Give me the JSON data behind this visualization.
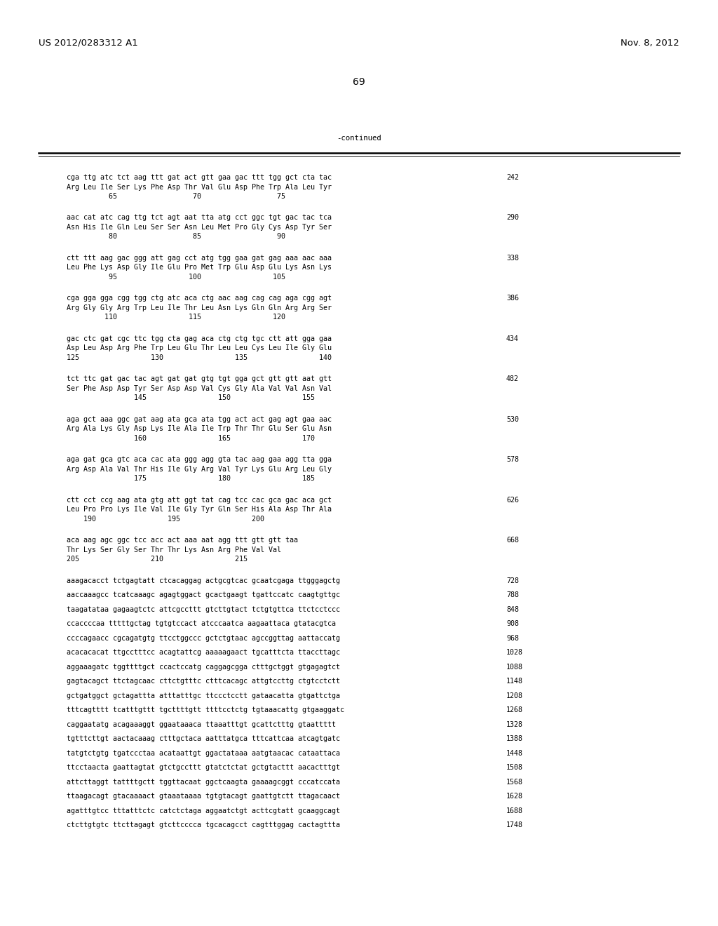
{
  "header_left": "US 2012/0283312 A1",
  "header_right": "Nov. 8, 2012",
  "page_number": "69",
  "continued_label": "-continued",
  "background_color": "#ffffff",
  "text_color": "#000000",
  "sequence_blocks": [
    {
      "dna": "cga ttg atc tct aag ttt gat act gtt gaa gac ttt tgg gct cta tac",
      "aa": "Arg Leu Ile Ser Lys Phe Asp Thr Val Glu Asp Phe Trp Ala Leu Tyr",
      "nums": "          65                  70                  75",
      "num_right": "242"
    },
    {
      "dna": "aac cat atc cag ttg tct agt aat tta atg cct ggc tgt gac tac tca",
      "aa": "Asn His Ile Gln Leu Ser Ser Asn Leu Met Pro Gly Cys Asp Tyr Ser",
      "nums": "          80                  85                  90",
      "num_right": "290"
    },
    {
      "dna": "ctt ttt aag gac ggg att gag cct atg tgg gaa gat gag aaa aac aaa",
      "aa": "Leu Phe Lys Asp Gly Ile Glu Pro Met Trp Glu Asp Glu Lys Asn Lys",
      "nums": "          95                 100                 105",
      "num_right": "338"
    },
    {
      "dna": "cga gga gga cgg tgg ctg atc aca ctg aac aag cag cag aga cgg agt",
      "aa": "Arg Gly Gly Arg Trp Leu Ile Thr Leu Asn Lys Gln Gln Arg Arg Ser",
      "nums": "         110                 115                 120",
      "num_right": "386"
    },
    {
      "dna": "gac ctc gat cgc ttc tgg cta gag aca ctg ctg tgc ctt att gga gaa",
      "aa": "Asp Leu Asp Arg Phe Trp Leu Glu Thr Leu Leu Cys Leu Ile Gly Glu",
      "nums": "125                 130                 135                 140",
      "num_right": "434"
    },
    {
      "dna": "tct ttc gat gac tac agt gat gat gtg tgt gga gct gtt gtt aat gtt",
      "aa": "Ser Phe Asp Asp Tyr Ser Asp Asp Val Cys Gly Ala Val Val Asn Val",
      "nums": "                145                 150                 155",
      "num_right": "482"
    },
    {
      "dna": "aga gct aaa ggc gat aag ata gca ata tgg act act gag agt gaa aac",
      "aa": "Arg Ala Lys Gly Asp Lys Ile Ala Ile Trp Thr Thr Glu Ser Glu Asn",
      "nums": "                160                 165                 170",
      "num_right": "530"
    },
    {
      "dna": "aga gat gca gtc aca cac ata ggg agg gta tac aag gaa agg tta gga",
      "aa": "Arg Asp Ala Val Thr His Ile Gly Arg Val Tyr Lys Glu Arg Leu Gly",
      "nums": "                175                 180                 185",
      "num_right": "578"
    },
    {
      "dna": "ctt cct ccg aag ata gtg att ggt tat cag tcc cac gca gac aca gct",
      "aa": "Leu Pro Pro Lys Ile Val Ile Gly Tyr Gln Ser His Ala Asp Thr Ala",
      "nums": "    190                 195                 200",
      "num_right": "626"
    },
    {
      "dna": "aca aag agc ggc tcc acc act aaa aat agg ttt gtt gtt taa",
      "aa": "Thr Lys Ser Gly Ser Thr Thr Lys Asn Arg Phe Val Val",
      "nums": "205                 210                 215",
      "num_right": "668"
    }
  ],
  "dna_only_lines": [
    {
      "text": "aaagacacct tctgagtatt ctcacaggag actgcgtcac gcaatcgaga ttgggagctg",
      "num": "728"
    },
    {
      "text": "aaccaaagcc tcatcaaagc agagtggact gcactgaagt tgattccatc caagtgttgc",
      "num": "788"
    },
    {
      "text": "taagatataa gagaagtctc attcgccttt gtcttgtact tctgtgttca ttctcctccc",
      "num": "848"
    },
    {
      "text": "ccaccccaa tttttgctag tgtgtccact atcccaatca aagaattaca gtatacgtca",
      "num": "908"
    },
    {
      "text": "ccccagaacc cgcagatgtg ttcctggccc gctctgtaac agccggttag aattaccatg",
      "num": "968"
    },
    {
      "text": "acacacacat ttgcctttcc acagtattcg aaaaagaact tgcatttcta ttaccttagc",
      "num": "1028"
    },
    {
      "text": "aggaaagatc tggttttgct ccactccatg caggagcgga ctttgctggt gtgagagtct",
      "num": "1088"
    },
    {
      "text": "gagtacagct ttctagcaac cttctgtttc ctttcacagc attgtccttg ctgtcctctt",
      "num": "1148"
    },
    {
      "text": "gctgatggct gctagattta atttatttgc ttccctcctt gataacatta gtgattctga",
      "num": "1208"
    },
    {
      "text": "tttcagtttt tcatttgttt tgcttttgtt ttttcctctg tgtaaacattg gtgaaggatc",
      "num": "1268"
    },
    {
      "text": "caggaatatg acagaaaggt ggaataaaca ttaaatttgt gcattctttg gtaattttt",
      "num": "1328"
    },
    {
      "text": "tgtttcttgt aactacaaag ctttgctaca aatttatgca tttcattcaa atcagtgatc",
      "num": "1388"
    },
    {
      "text": "tatgtctgtg tgatccctaa acataattgt ggactataaa aatgtaacac cataattaca",
      "num": "1448"
    },
    {
      "text": "ttcctaacta gaattagtat gtctgccttt gtatctctat gctgtacttt aacactttgt",
      "num": "1508"
    },
    {
      "text": "attcttaggt tattttgctt tggttacaat ggctcaagta gaaaagcggt cccatccata",
      "num": "1568"
    },
    {
      "text": "ttaagacagt gtacaaaact gtaaataaaa tgtgtacagt gaattgtctt ttagacaact",
      "num": "1628"
    },
    {
      "text": "agatttgtcc tttatttctc catctctaga aggaatctgt acttcgtatt gcaaggcagt",
      "num": "1688"
    },
    {
      "text": "ctcttgtgtc ttcttagagt gtcttcccca tgcacagcct cagtttggag cactagttta",
      "num": "1748"
    }
  ]
}
